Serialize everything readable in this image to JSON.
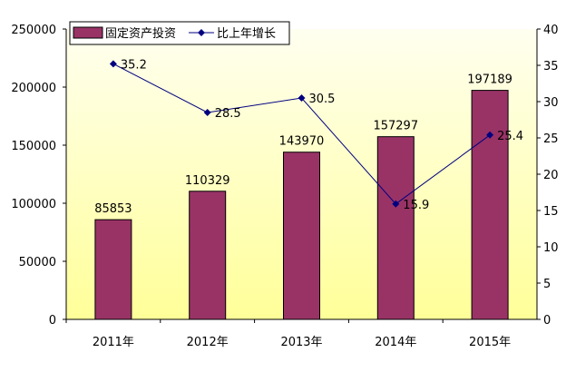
{
  "chart_data": {
    "type": "bar+line",
    "categories": [
      "2011年",
      "2012年",
      "2013年",
      "2014年",
      "2015年"
    ],
    "series": [
      {
        "name": "固定资产投资",
        "type": "bar",
        "axis": "left",
        "values": [
          85853,
          110329,
          143970,
          157297,
          197189
        ],
        "color": "#993366"
      },
      {
        "name": "比上年增长",
        "type": "line",
        "axis": "right",
        "values": [
          35.2,
          28.5,
          30.5,
          15.9,
          25.4
        ],
        "color": "#000080"
      }
    ],
    "y_left": {
      "lim": [
        0,
        250000
      ],
      "ticks": [
        "0",
        "50000",
        "100000",
        "150000",
        "200000",
        "250000"
      ]
    },
    "y_right": {
      "lim": [
        0,
        40
      ],
      "ticks": [
        "0",
        "5",
        "10",
        "15",
        "20",
        "25",
        "30",
        "35",
        "40"
      ]
    },
    "legend": "top",
    "grid": false,
    "background": [
      "#FFFFF0",
      "#FFFF99"
    ]
  }
}
